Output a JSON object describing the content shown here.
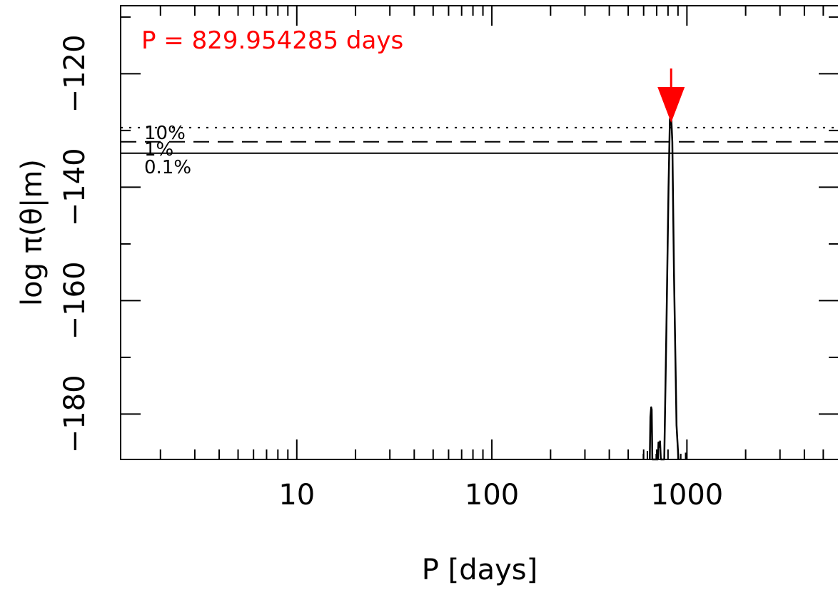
{
  "chart_data": {
    "type": "line",
    "title": "",
    "xlabel": "P [days]",
    "ylabel": "log π(θ|m)",
    "x_scale": "log",
    "xlim": [
      1.25,
      6000
    ],
    "ylim": [
      -188,
      -108
    ],
    "x_ticks": [
      10,
      100,
      1000
    ],
    "x_tick_labels": [
      "10",
      "100",
      "1000"
    ],
    "y_ticks": [
      -180,
      -160,
      -140,
      -120
    ],
    "y_tick_labels": [
      "−180",
      "−160",
      "−140",
      "−120"
    ],
    "annotation": {
      "text": "P = 829.954285 days",
      "color": "#ff0000"
    },
    "peak_marker": {
      "x": 829.954285,
      "color": "#ff0000",
      "shape": "down-arrow"
    },
    "thresholds": [
      {
        "label": "10%",
        "y": -129.5,
        "style": "dotted"
      },
      {
        "label": "1%",
        "y": -132.0,
        "style": "dashed"
      },
      {
        "label": "0.1%",
        "y": -134.0,
        "style": "solid"
      }
    ],
    "series": [
      {
        "color": "#000000",
        "points": [
          [
            645,
            -188
          ],
          [
            650,
            -180.5
          ],
          [
            656,
            -178.8
          ],
          [
            660,
            -179.2
          ],
          [
            665,
            -188
          ],
          [
            710,
            -188
          ],
          [
            715,
            -185
          ],
          [
            720,
            -185.8
          ],
          [
            728,
            -184.8
          ],
          [
            735,
            -188
          ],
          [
            765,
            -188
          ],
          [
            785,
            -165
          ],
          [
            805,
            -140
          ],
          [
            818,
            -128
          ],
          [
            829.954285,
            -127.2
          ],
          [
            842,
            -132
          ],
          [
            858,
            -155
          ],
          [
            885,
            -182
          ],
          [
            905,
            -188
          ]
        ]
      }
    ],
    "minor_spikes": [
      {
        "x": 598,
        "top": -187.0
      },
      {
        "x": 627,
        "top": -186.5
      },
      {
        "x": 696,
        "top": -187.0
      },
      {
        "x": 930,
        "top": -187.0
      },
      {
        "x": 985,
        "top": -186.8
      }
    ]
  }
}
